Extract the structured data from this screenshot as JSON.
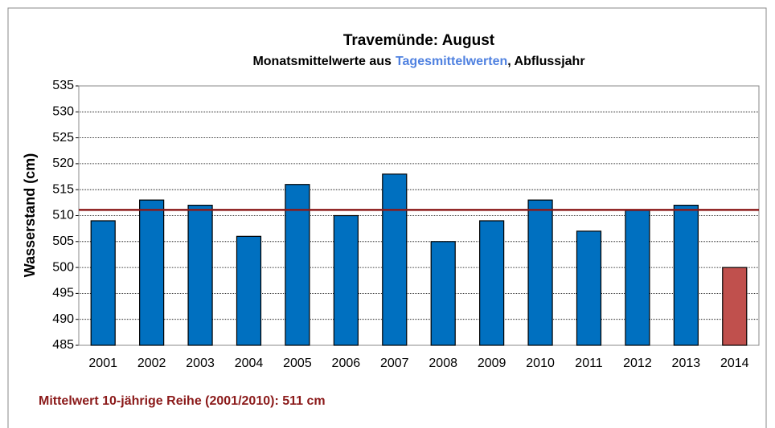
{
  "chart_data": {
    "type": "bar",
    "title": "Travemünde: August",
    "subtitle_parts": [
      "Monatsmittelwerte aus",
      "Tagesmittelwerten",
      ", Abflussjahr"
    ],
    "subtitle_colors": [
      "#000000",
      "#4f81e0",
      "#000000"
    ],
    "y_label": "Wasserstand (cm)",
    "categories": [
      "2001",
      "2002",
      "2003",
      "2004",
      "2005",
      "2006",
      "2007",
      "2008",
      "2009",
      "2010",
      "2011",
      "2012",
      "2013",
      "2014"
    ],
    "values": [
      509,
      513,
      512,
      506,
      516,
      510,
      518,
      505,
      509,
      513,
      507,
      511,
      512,
      500
    ],
    "colors": [
      "#0070c0",
      "#0070c0",
      "#0070c0",
      "#0070c0",
      "#0070c0",
      "#0070c0",
      "#0070c0",
      "#0070c0",
      "#0070c0",
      "#0070c0",
      "#0070c0",
      "#0070c0",
      "#0070c0",
      "#c0504d"
    ],
    "reference_line": {
      "value": 511.1,
      "color": "#8b1a1a"
    },
    "annotation": "Mittelwert 10-jährige Reihe (2001/2010): 511 cm",
    "annotation_color": "#8b1a1a",
    "ylim": [
      485,
      535
    ],
    "yticks": [
      485,
      490,
      495,
      500,
      505,
      510,
      515,
      520,
      525,
      530,
      535
    ],
    "grid": true
  }
}
